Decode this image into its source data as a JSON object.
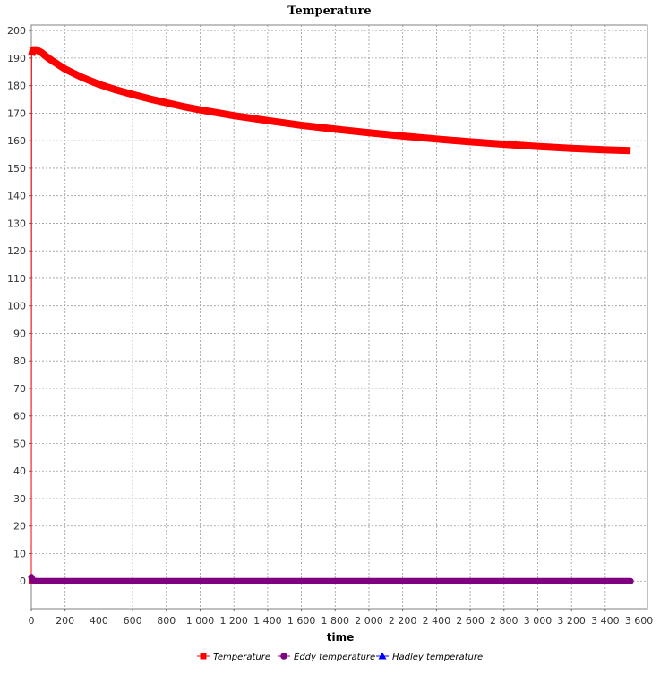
{
  "chart_data": {
    "type": "line",
    "title": "Temperature",
    "xlabel": "time",
    "ylabel": "",
    "xlim": [
      0,
      3650
    ],
    "ylim": [
      -10,
      202
    ],
    "xticks": [
      0,
      200,
      400,
      600,
      800,
      1000,
      1200,
      1400,
      1600,
      1800,
      2000,
      2200,
      2400,
      2600,
      2800,
      3000,
      3200,
      3400,
      3600
    ],
    "xtick_labels": [
      "0",
      "200",
      "400",
      "600",
      "800",
      "1 000",
      "1 200",
      "1 400",
      "1 600",
      "1 800",
      "2 000",
      "2 200",
      "2 400",
      "2 600",
      "2 800",
      "3 000",
      "3 200",
      "3 400",
      "3 600"
    ],
    "yticks": [
      0,
      10,
      20,
      30,
      40,
      50,
      60,
      70,
      80,
      90,
      100,
      110,
      120,
      130,
      140,
      150,
      160,
      170,
      180,
      190,
      200
    ],
    "ytick_labels": [
      "0",
      "10",
      "20",
      "30",
      "40",
      "50",
      "60",
      "70",
      "80",
      "90",
      "100",
      "110",
      "120",
      "130",
      "140",
      "150",
      "160",
      "170",
      "180",
      "190",
      "200"
    ],
    "grid": true,
    "legend_position": "bottom",
    "series": [
      {
        "name": "Temperature",
        "color": "#ff0000",
        "marker": "square",
        "x": [
          0,
          2,
          10,
          30,
          60,
          100,
          150,
          200,
          300,
          400,
          500,
          600,
          700,
          800,
          900,
          1000,
          1200,
          1400,
          1600,
          1800,
          2000,
          2200,
          2400,
          2600,
          2800,
          3000,
          3200,
          3400,
          3550
        ],
        "y": [
          0,
          191,
          193,
          193,
          192,
          190,
          188,
          186,
          183,
          180.5,
          178.5,
          176.8,
          175.2,
          173.8,
          172.4,
          171.2,
          169.1,
          167.3,
          165.6,
          164.2,
          162.9,
          161.7,
          160.6,
          159.6,
          158.7,
          157.9,
          157.2,
          156.7,
          156.4
        ]
      },
      {
        "name": "Eddy temperature",
        "color": "#800080",
        "marker": "circle",
        "x": [
          0,
          10,
          30,
          3550
        ],
        "y": [
          1.5,
          0.2,
          0,
          0
        ]
      },
      {
        "name": "Hadley temperature",
        "color": "#0000ff",
        "marker": "triangle",
        "x": [],
        "y": []
      }
    ]
  }
}
